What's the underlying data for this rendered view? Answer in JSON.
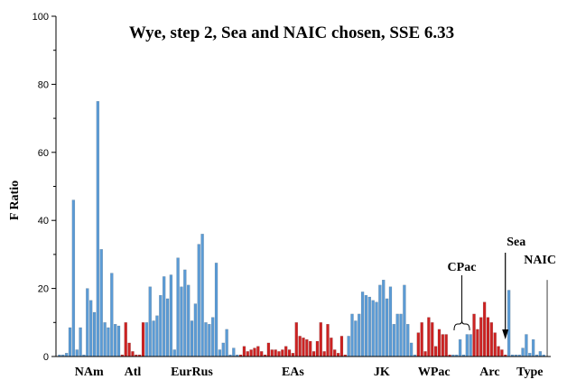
{
  "chart_data": {
    "type": "bar",
    "title": "Wye, step 2, Sea and NAIC chosen, SSE 6.33",
    "xlabel": "",
    "ylabel": "F Ratio",
    "ylim": [
      0,
      100
    ],
    "yticks": [
      0,
      20,
      40,
      60,
      80,
      100
    ],
    "grid": false,
    "colors": {
      "blue": "#5b9bd5",
      "red": "#cc2222",
      "gray": "#808080"
    },
    "groups": [
      {
        "label": "NAm",
        "color": "blue",
        "values": [
          0.5,
          0.5,
          1,
          8.5,
          46,
          2,
          8.5,
          0.5,
          20,
          16.5,
          13,
          75,
          31.5,
          10,
          8.5,
          24.5,
          9.5,
          9
        ]
      },
      {
        "label": "Atl",
        "color": "red",
        "values": [
          0.5,
          10,
          4,
          1.5,
          0.5,
          0.5,
          10
        ]
      },
      {
        "label": "EurRus",
        "color": "blue",
        "values": [
          10,
          20.5,
          10.5,
          12,
          18,
          23.5,
          17,
          24,
          2,
          29,
          20.5,
          25.5,
          21,
          10.5,
          15.5,
          33,
          36,
          10,
          9.5,
          11.5,
          27.5,
          2,
          4,
          8,
          0.5,
          2.5,
          0.5
        ]
      },
      {
        "label": "EAs",
        "color": "red",
        "values": [
          0.5,
          3,
          1.5,
          2,
          2.5,
          3,
          1.5,
          0.5,
          4,
          2,
          2,
          1.5,
          2,
          3,
          2,
          1,
          10,
          6,
          5.5,
          5,
          4.5,
          1.5,
          4.5,
          10,
          1.5,
          9.5,
          5.5,
          2,
          1,
          6,
          0.5
        ]
      },
      {
        "label": "JK",
        "color": "blue",
        "values": [
          6,
          12.5,
          10.5,
          12.5,
          19,
          18,
          17.5,
          16.5,
          16,
          21,
          22.5,
          17,
          20.5,
          9.5,
          12.5,
          12.5,
          21,
          9.5,
          4,
          0.5
        ]
      },
      {
        "label": "WPac",
        "color": "red",
        "values": [
          7,
          10,
          1.5,
          11.5,
          10,
          3,
          8,
          6.5,
          6.5,
          0.5
        ]
      },
      {
        "label": "CPac",
        "color": "blue",
        "values": [
          0.5,
          0.5,
          5,
          0.5,
          6.5,
          6.5
        ]
      },
      {
        "label": "Arc",
        "color": "red",
        "values": [
          12.5,
          8,
          11.5,
          16,
          11.5,
          10,
          7,
          3,
          2,
          0.5
        ]
      },
      {
        "label": "Sea",
        "color": "blue",
        "values": [
          19.5,
          0.5
        ]
      },
      {
        "label": "Type",
        "color": "blue",
        "values": [
          0.5,
          0.5,
          2.5,
          6.5,
          1,
          5,
          0.5,
          1.5,
          0.5
        ]
      },
      {
        "label": "NAIC",
        "color": "gray",
        "values": [
          22.5
        ]
      }
    ],
    "annotations": [
      {
        "text": "CPac",
        "group": "CPac"
      },
      {
        "text": "Sea",
        "group": "Sea"
      },
      {
        "text": "NAIC",
        "group": "NAIC"
      }
    ],
    "group_axis_labels": [
      "NAm",
      "Atl",
      "EurRus",
      "EAs",
      "JK",
      "WPac",
      "Arc",
      "Type"
    ]
  }
}
